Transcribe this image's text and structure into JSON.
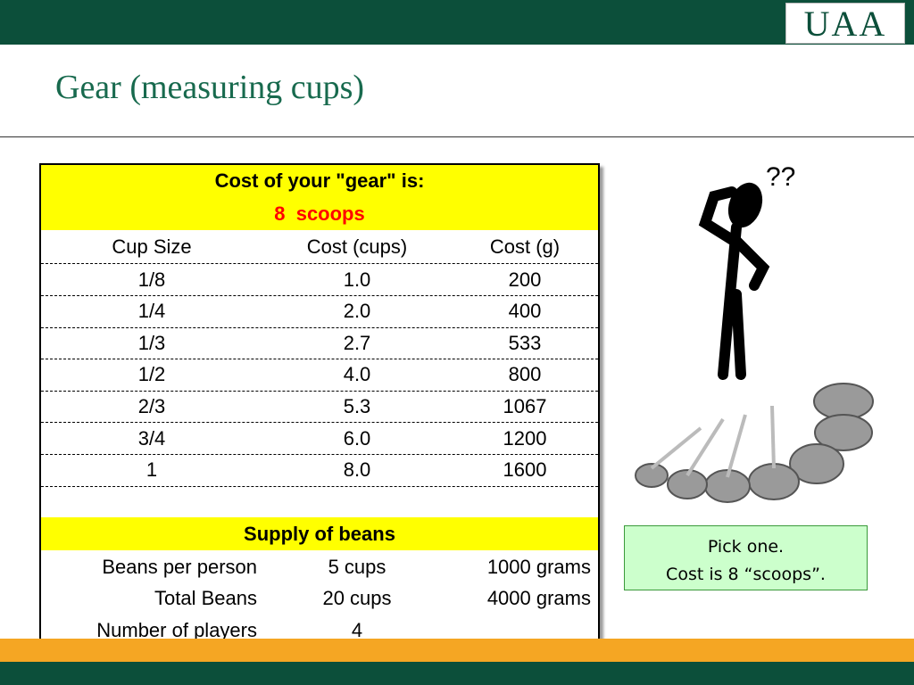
{
  "header": {
    "logo": "UAA",
    "title": "Gear (measuring cups)"
  },
  "table": {
    "cost_title": "Cost of your \"gear\" is:",
    "cost_value": "8  scoops",
    "columns": [
      "Cup Size",
      "Cost (cups)",
      "Cost (g)"
    ],
    "rows": [
      [
        "1/8",
        "1.0",
        "200"
      ],
      [
        "1/4",
        "2.0",
        "400"
      ],
      [
        "1/3",
        "2.7",
        "533"
      ],
      [
        "1/2",
        "4.0",
        "800"
      ],
      [
        "2/3",
        "5.3",
        "1067"
      ],
      [
        "3/4",
        "6.0",
        "1200"
      ],
      [
        "1",
        "8.0",
        "1600"
      ]
    ],
    "supply_title": "Supply of beans",
    "supply_rows": [
      [
        "Beans per person",
        "5 cups",
        "1000 grams"
      ],
      [
        "Total Beans",
        "20 cups",
        "4000 grams"
      ],
      [
        "Number of players",
        "4"
      ]
    ]
  },
  "note": {
    "lines": [
      "Pick one.",
      "Cost is 8 “scoops”."
    ]
  }
}
